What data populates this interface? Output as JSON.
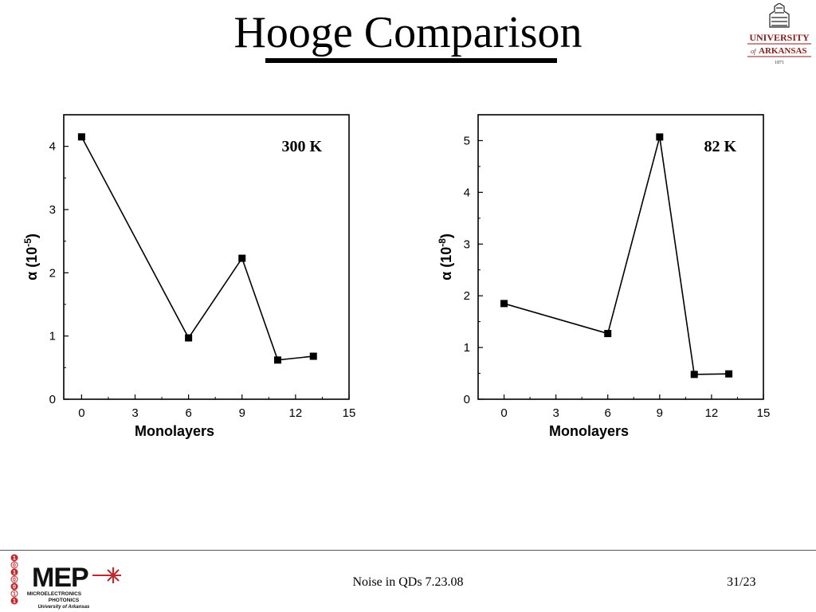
{
  "slide": {
    "title": "Hooge Comparison",
    "footer_center": "Noise in QDs 7.23.08",
    "footer_page": "31/23"
  },
  "logos": {
    "university": {
      "line1": "UNIVERSITY",
      "line2_of": "of",
      "line2": "ARKANSAS",
      "year": "1871",
      "color": "#8a1c1c"
    },
    "mep": {
      "letters": "MEP",
      "line1": "MICROELECTRONICS",
      "line2": "PHOTONICS",
      "line3": "University of Arkansas",
      "accent": "#c0282d",
      "binary": "1010011"
    }
  },
  "chart_data": [
    {
      "type": "line",
      "annotation": "300 K",
      "xlabel": "Monolayers",
      "ylabel": "α (10-5)",
      "ylabel_base": "α (10",
      "ylabel_exp": "-5",
      "ylabel_close": ")",
      "x": [
        0,
        6,
        9,
        11,
        13
      ],
      "y": [
        4.15,
        0.97,
        2.23,
        0.62,
        0.68
      ],
      "xlim": [
        -1,
        15
      ],
      "ylim": [
        0,
        4.5
      ],
      "xticks": [
        0,
        3,
        6,
        9,
        12,
        15
      ],
      "yticks": [
        0,
        1,
        2,
        3,
        4
      ],
      "grid": false,
      "marker": "square"
    },
    {
      "type": "line",
      "annotation": "82 K",
      "xlabel": "Monolayers",
      "ylabel": "α (10-8)",
      "ylabel_base": "α (10",
      "ylabel_exp": "-8",
      "ylabel_close": ")",
      "x": [
        0,
        6,
        9,
        11,
        13
      ],
      "y": [
        1.85,
        1.27,
        5.07,
        0.48,
        0.49
      ],
      "xlim": [
        -1.5,
        15
      ],
      "ylim": [
        0,
        5.5
      ],
      "xticks": [
        0,
        3,
        6,
        9,
        12,
        15
      ],
      "yticks": [
        0,
        1,
        2,
        3,
        4,
        5
      ],
      "grid": false,
      "marker": "square"
    }
  ]
}
